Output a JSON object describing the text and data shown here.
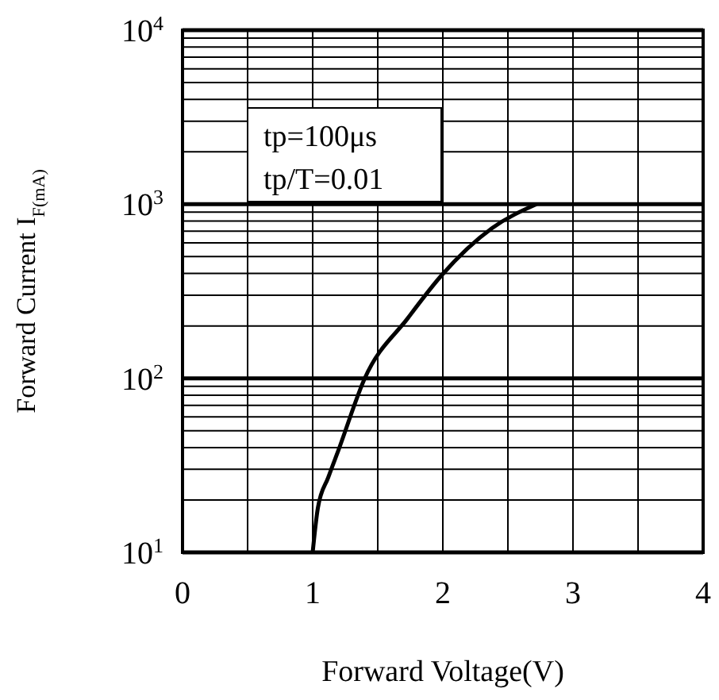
{
  "chart_data": {
    "type": "line",
    "xlabel": "Forward Voltage(V)",
    "ylabel": "Forward Current I$_{F(mA)}$",
    "log": "y",
    "grid": true,
    "marker": "none",
    "line_style": "solid",
    "annotations": [
      "tp=100μs",
      "tp/T=0.01"
    ],
    "xlim": [
      0,
      4
    ],
    "ylim": [
      10,
      10000
    ],
    "xticks": [
      0,
      {
        "value": 0.5,
        "label": null
      },
      1,
      {
        "value": 1.5,
        "label": null
      },
      2,
      {
        "value": 2.5,
        "label": null
      },
      3,
      {
        "value": 3.5,
        "label": null
      },
      4
    ],
    "yticks": [
      {
        "value": 10,
        "label": "10$^{1}$"
      },
      {
        "value": 20,
        "label": null
      },
      {
        "value": 30,
        "label": null
      },
      {
        "value": 40,
        "label": null
      },
      {
        "value": 50,
        "label": null
      },
      {
        "value": 60,
        "label": null
      },
      {
        "value": 70,
        "label": null
      },
      {
        "value": 80,
        "label": null
      },
      {
        "value": 90,
        "label": null
      },
      {
        "value": 100,
        "label": "10$^{2}$"
      },
      {
        "value": 200,
        "label": null
      },
      {
        "value": 300,
        "label": null
      },
      {
        "value": 400,
        "label": null
      },
      {
        "value": 500,
        "label": null
      },
      {
        "value": 600,
        "label": null
      },
      {
        "value": 700,
        "label": null
      },
      {
        "value": 800,
        "label": null
      },
      {
        "value": 900,
        "label": null
      },
      {
        "value": 1000,
        "label": "10$^{3}$"
      },
      {
        "value": 2000,
        "label": null
      },
      {
        "value": 3000,
        "label": null
      },
      {
        "value": 4000,
        "label": null
      },
      {
        "value": 5000,
        "label": null
      },
      {
        "value": 6000,
        "label": null
      },
      {
        "value": 7000,
        "label": null
      },
      {
        "value": 8000,
        "label": null
      },
      {
        "value": 9000,
        "label": null
      },
      {
        "value": 10000,
        "label": "10$^{4}$"
      }
    ],
    "series": [
      {
        "color": "#000000",
        "x": [
          1.0,
          1.04,
          1.12,
          1.2,
          1.4,
          1.73,
          1.99,
          2.38,
          2.72
        ],
        "values": [
          10,
          18,
          27,
          39,
          100,
          221,
          390,
          730,
          1000
        ]
      }
    ]
  }
}
